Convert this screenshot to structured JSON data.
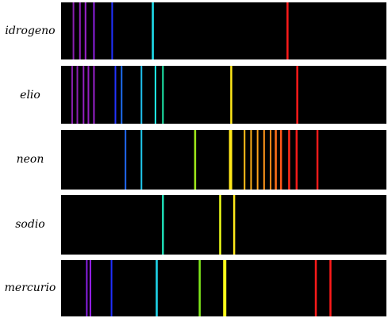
{
  "spectra": [
    {
      "label": "idrogeno",
      "lines": [
        {
          "pos": 0.038,
          "color": "#8a1fb0",
          "width": 2
        },
        {
          "pos": 0.058,
          "color": "#9420c0",
          "width": 2
        },
        {
          "pos": 0.075,
          "color": "#9a22cc",
          "width": 2
        },
        {
          "pos": 0.101,
          "color": "#8f1fe0",
          "width": 2
        },
        {
          "pos": 0.157,
          "color": "#1f2fff",
          "width": 2
        },
        {
          "pos": 0.282,
          "color": "#1fe0ee",
          "width": 2.5
        },
        {
          "pos": 0.696,
          "color": "#ff1a1a",
          "width": 2.5
        }
      ]
    },
    {
      "label": "elio",
      "lines": [
        {
          "pos": 0.034,
          "color": "#8a1fb0",
          "width": 2
        },
        {
          "pos": 0.05,
          "color": "#8a1fb0",
          "width": 2
        },
        {
          "pos": 0.069,
          "color": "#9420c0",
          "width": 2
        },
        {
          "pos": 0.084,
          "color": "#9420c0",
          "width": 2
        },
        {
          "pos": 0.101,
          "color": "#9a22cc",
          "width": 2
        },
        {
          "pos": 0.167,
          "color": "#2233ff",
          "width": 2
        },
        {
          "pos": 0.186,
          "color": "#1d6cf0",
          "width": 2
        },
        {
          "pos": 0.247,
          "color": "#1fc0ee",
          "width": 2
        },
        {
          "pos": 0.29,
          "color": "#1ff0ea",
          "width": 2
        },
        {
          "pos": 0.313,
          "color": "#1ff0b0",
          "width": 2
        },
        {
          "pos": 0.523,
          "color": "#ffe81a",
          "width": 2.5
        },
        {
          "pos": 0.726,
          "color": "#ff1a1a",
          "width": 2.5
        }
      ]
    },
    {
      "label": "neon",
      "lines": [
        {
          "pos": 0.198,
          "color": "#2068f0",
          "width": 2
        },
        {
          "pos": 0.247,
          "color": "#1fc8ee",
          "width": 2
        },
        {
          "pos": 0.412,
          "color": "#9fe81a",
          "width": 2.5
        },
        {
          "pos": 0.521,
          "color": "#ffe81a",
          "width": 4
        },
        {
          "pos": 0.564,
          "color": "#ffc01a",
          "width": 2
        },
        {
          "pos": 0.584,
          "color": "#ffb01a",
          "width": 2
        },
        {
          "pos": 0.604,
          "color": "#ffa21a",
          "width": 2
        },
        {
          "pos": 0.624,
          "color": "#ff951a",
          "width": 2
        },
        {
          "pos": 0.644,
          "color": "#ff881a",
          "width": 2
        },
        {
          "pos": 0.66,
          "color": "#ff701a",
          "width": 2.5
        },
        {
          "pos": 0.676,
          "color": "#ff581a",
          "width": 2.5
        },
        {
          "pos": 0.701,
          "color": "#ff2a1a",
          "width": 2.5
        },
        {
          "pos": 0.724,
          "color": "#ff1a1a",
          "width": 2.5
        },
        {
          "pos": 0.788,
          "color": "#ee1a1a",
          "width": 2.5
        }
      ]
    },
    {
      "label": "sodio",
      "lines": [
        {
          "pos": 0.313,
          "color": "#1fe0b8",
          "width": 2.5
        },
        {
          "pos": 0.489,
          "color": "#f0ff1a",
          "width": 2.5
        },
        {
          "pos": 0.532,
          "color": "#ffe81a",
          "width": 2.5
        }
      ]
    },
    {
      "label": "mercurio",
      "lines": [
        {
          "pos": 0.079,
          "color": "#8a1fe6",
          "width": 2
        },
        {
          "pos": 0.09,
          "color": "#9a22f0",
          "width": 2
        },
        {
          "pos": 0.155,
          "color": "#1f2fff",
          "width": 2
        },
        {
          "pos": 0.294,
          "color": "#1fd8ee",
          "width": 2.5
        },
        {
          "pos": 0.426,
          "color": "#7fe81a",
          "width": 2.5
        },
        {
          "pos": 0.503,
          "color": "#ffff1a",
          "width": 4
        },
        {
          "pos": 0.783,
          "color": "#ff1a1a",
          "width": 2.5
        },
        {
          "pos": 0.828,
          "color": "#ff1a1a",
          "width": 2.5
        }
      ]
    }
  ]
}
